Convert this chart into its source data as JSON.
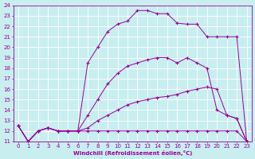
{
  "xlabel": "Windchill (Refroidissement éolien,°C)",
  "xlim": [
    -0.5,
    23.5
  ],
  "ylim": [
    11,
    24
  ],
  "xticks": [
    0,
    1,
    2,
    3,
    4,
    5,
    6,
    7,
    8,
    9,
    10,
    11,
    12,
    13,
    14,
    15,
    16,
    17,
    18,
    19,
    20,
    21,
    22,
    23
  ],
  "yticks": [
    11,
    12,
    13,
    14,
    15,
    16,
    17,
    18,
    19,
    20,
    21,
    22,
    23,
    24
  ],
  "background_color": "#c8eef0",
  "line_color": "#990099",
  "grid_color": "#ffffff",
  "lines": [
    {
      "x": [
        0,
        1,
        2,
        3,
        4,
        5,
        6,
        7,
        8,
        9,
        10,
        11,
        12,
        13,
        14,
        15,
        16,
        17,
        18,
        19,
        20,
        21,
        22,
        23
      ],
      "y": [
        12.5,
        11.0,
        12.0,
        12.3,
        12.0,
        12.0,
        12.0,
        12.0,
        12.0,
        12.0,
        12.0,
        12.0,
        12.0,
        12.0,
        12.0,
        12.0,
        12.0,
        12.0,
        12.0,
        12.0,
        12.0,
        12.0,
        12.0,
        11.0
      ]
    },
    {
      "x": [
        0,
        1,
        2,
        3,
        4,
        5,
        6,
        7,
        8,
        9,
        10,
        11,
        12,
        13,
        14,
        15,
        16,
        17,
        18,
        19,
        20,
        21,
        22,
        23
      ],
      "y": [
        12.5,
        11.0,
        12.0,
        12.3,
        12.0,
        12.0,
        12.0,
        12.3,
        13.0,
        13.5,
        14.0,
        14.5,
        14.8,
        15.0,
        15.2,
        15.3,
        15.5,
        15.8,
        16.0,
        16.2,
        16.0,
        13.5,
        13.2,
        11.0
      ]
    },
    {
      "x": [
        0,
        1,
        2,
        3,
        4,
        5,
        6,
        7,
        8,
        9,
        10,
        11,
        12,
        13,
        14,
        15,
        16,
        17,
        18,
        19,
        20,
        21,
        22,
        23
      ],
      "y": [
        12.5,
        11.0,
        12.0,
        12.3,
        12.0,
        12.0,
        12.0,
        13.5,
        15.0,
        16.5,
        17.5,
        18.2,
        18.5,
        18.8,
        19.0,
        19.0,
        18.5,
        19.0,
        18.5,
        18.0,
        14.0,
        13.5,
        13.2,
        11.0
      ]
    },
    {
      "x": [
        0,
        1,
        2,
        3,
        4,
        5,
        6,
        7,
        8,
        9,
        10,
        11,
        12,
        13,
        14,
        15,
        16,
        17,
        18,
        19,
        20,
        21,
        22,
        23
      ],
      "y": [
        12.5,
        11.0,
        12.0,
        12.3,
        12.0,
        12.0,
        12.0,
        18.5,
        20.0,
        21.5,
        22.2,
        22.5,
        23.5,
        23.5,
        23.2,
        23.2,
        22.3,
        22.2,
        22.2,
        21.0,
        21.0,
        21.0,
        21.0,
        11.0
      ]
    }
  ]
}
